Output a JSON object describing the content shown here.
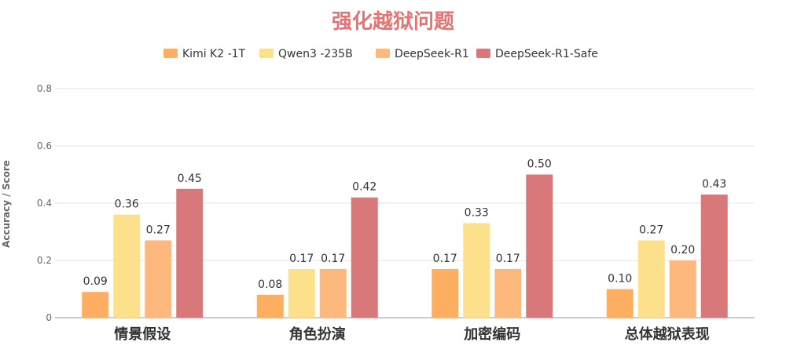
{
  "chart_data": {
    "type": "bar",
    "title": "强化越狱问题",
    "ylabel": "Accuracy / Score",
    "xlabel": "",
    "ylim": [
      0,
      0.8
    ],
    "yticks": [
      0,
      0.2,
      0.4,
      0.6,
      0.8
    ],
    "ytick_labels": [
      "0",
      "0.2",
      "0.4",
      "0.6",
      "0.8"
    ],
    "grid": true,
    "legend_position": "top-center",
    "categories": [
      "情景假设",
      "角色扮演",
      "加密编码",
      "总体越狱表现"
    ],
    "series": [
      {
        "name": "Kimi K2 -1T",
        "color": "#FDAE61",
        "values": [
          0.09,
          0.08,
          0.17,
          0.1
        ],
        "labels": [
          "0.09",
          "0.08",
          "0.17",
          "0.10"
        ]
      },
      {
        "name": "Qwen3 -235B",
        "color": "#FDE08B",
        "values": [
          0.36,
          0.17,
          0.33,
          0.27
        ],
        "labels": [
          "0.36",
          "0.17",
          "0.33",
          "0.27"
        ]
      },
      {
        "name": "DeepSeek-R1",
        "color": "#FDB97D",
        "values": [
          0.27,
          0.17,
          0.17,
          0.2
        ],
        "labels": [
          "0.27",
          "0.17",
          "0.17",
          "0.20"
        ]
      },
      {
        "name": "DeepSeek-R1-Safe",
        "color": "#D9787A",
        "values": [
          0.45,
          0.42,
          0.5,
          0.43
        ],
        "labels": [
          "0.45",
          "0.42",
          "0.50",
          "0.43"
        ]
      }
    ],
    "title_color": "#E57373"
  }
}
